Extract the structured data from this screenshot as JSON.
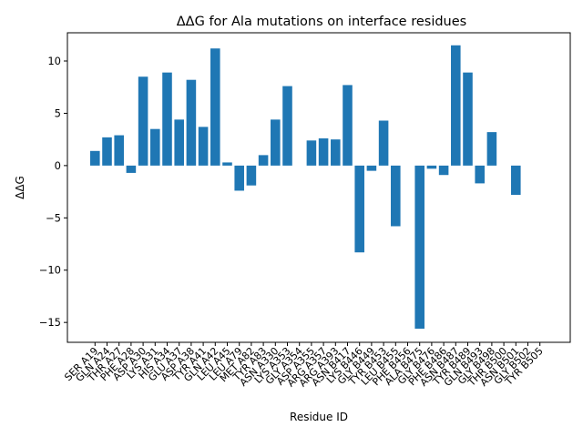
{
  "chart_data": {
    "type": "bar",
    "title": "ΔΔG for Ala mutations on interface residues",
    "xlabel": "Residue ID",
    "ylabel": "ΔΔG",
    "ylim": [
      -16.9,
      12.7
    ],
    "yticks": [
      -15,
      -10,
      -5,
      0,
      5,
      10
    ],
    "ytick_labels": [
      "−15",
      "−10",
      "−5",
      "0",
      "5",
      "10"
    ],
    "grid": false,
    "legend": "none",
    "categories": [
      "SER A19",
      "GLN A24",
      "THR A27",
      "PHE A28",
      "ASP A30",
      "LYS A31",
      "HIS A34",
      "GLU A37",
      "ASP A38",
      "TYR A41",
      "GLN A42",
      "LEU A45",
      "LEU A79",
      "MET A82",
      "TYR A83",
      "ASN A330",
      "LYS A353",
      "GLY A354",
      "ASP A355",
      "ARG A357",
      "ARG A393",
      "ASN B417",
      "LYS B446",
      "GLY B449",
      "TYR B453",
      "LEU B455",
      "PHE B456",
      "ALA B475",
      "GLY B476",
      "PHE B486",
      "ASN B487",
      "TYR B489",
      "GLN B493",
      "GLY B498",
      "THR B500",
      "ASN B501",
      "GLY B502",
      "TYR B505"
    ],
    "values": [
      1.4,
      2.7,
      2.9,
      -0.7,
      8.5,
      3.5,
      8.9,
      4.4,
      8.2,
      3.7,
      11.2,
      0.3,
      -2.4,
      -1.9,
      1.0,
      4.4,
      7.6,
      0.0,
      2.4,
      2.6,
      2.5,
      7.7,
      -8.3,
      -0.5,
      4.3,
      -5.8,
      0.0,
      -15.6,
      -0.3,
      -0.9,
      11.5,
      8.9,
      -1.7,
      3.2,
      0.0,
      -2.8,
      0.0,
      0.0
    ],
    "bar_color": "#1f77b4"
  }
}
